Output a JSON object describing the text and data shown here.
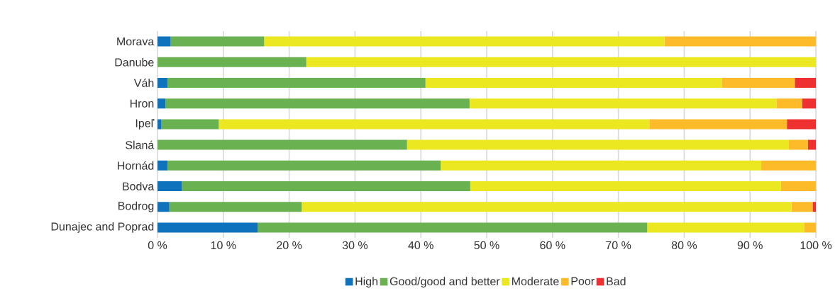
{
  "chart_data": {
    "type": "bar",
    "orientation": "horizontal",
    "stacked": true,
    "categories": [
      "Morava",
      "Danube",
      "Váh",
      "Hron",
      "Ipeľ",
      "Slaná",
      "Hornád",
      "Bodva",
      "Bodrog",
      "Dunajec and Poprad"
    ],
    "series": [
      {
        "name": "High",
        "color": "#0e72bd",
        "values": [
          2.0,
          0,
          1.5,
          1.2,
          0.6,
          0,
          1.5,
          3.7,
          1.8,
          15.2
        ]
      },
      {
        "name": "Good/good and better",
        "color": "#6ab152",
        "values": [
          14.2,
          22.6,
          39.2,
          46.2,
          8.7,
          37.9,
          41.5,
          43.8,
          20.1,
          59.2
        ]
      },
      {
        "name": "Moderate",
        "color": "#ebe720",
        "values": [
          60.8,
          77.4,
          45.0,
          46.6,
          65.4,
          58.0,
          48.7,
          47.2,
          74.4,
          23.8
        ]
      },
      {
        "name": "Poor",
        "color": "#fdbb2a",
        "values": [
          23.0,
          0,
          11.1,
          3.9,
          20.9,
          2.9,
          8.3,
          5.3,
          3.2,
          1.8
        ]
      },
      {
        "name": "Bad",
        "color": "#ee3030",
        "values": [
          0,
          0,
          3.2,
          2.1,
          4.4,
          1.2,
          0,
          0,
          0.5,
          0
        ]
      }
    ],
    "xlim": [
      0,
      100
    ],
    "xticks": [
      {
        "value": 0,
        "label": "0 %"
      },
      {
        "value": 10,
        "label": "10 %"
      },
      {
        "value": 20,
        "label": "20 %"
      },
      {
        "value": 30,
        "label": "30 %"
      },
      {
        "value": 40,
        "label": "40 %"
      },
      {
        "value": 50,
        "label": "50 %"
      },
      {
        "value": 60,
        "label": "60 %"
      },
      {
        "value": 70,
        "label": "70 %"
      },
      {
        "value": 80,
        "label": "80 %"
      },
      {
        "value": 90,
        "label": "90 %"
      },
      {
        "value": 100,
        "label": "100 %"
      }
    ],
    "grid": "x",
    "legend": "bottom"
  }
}
